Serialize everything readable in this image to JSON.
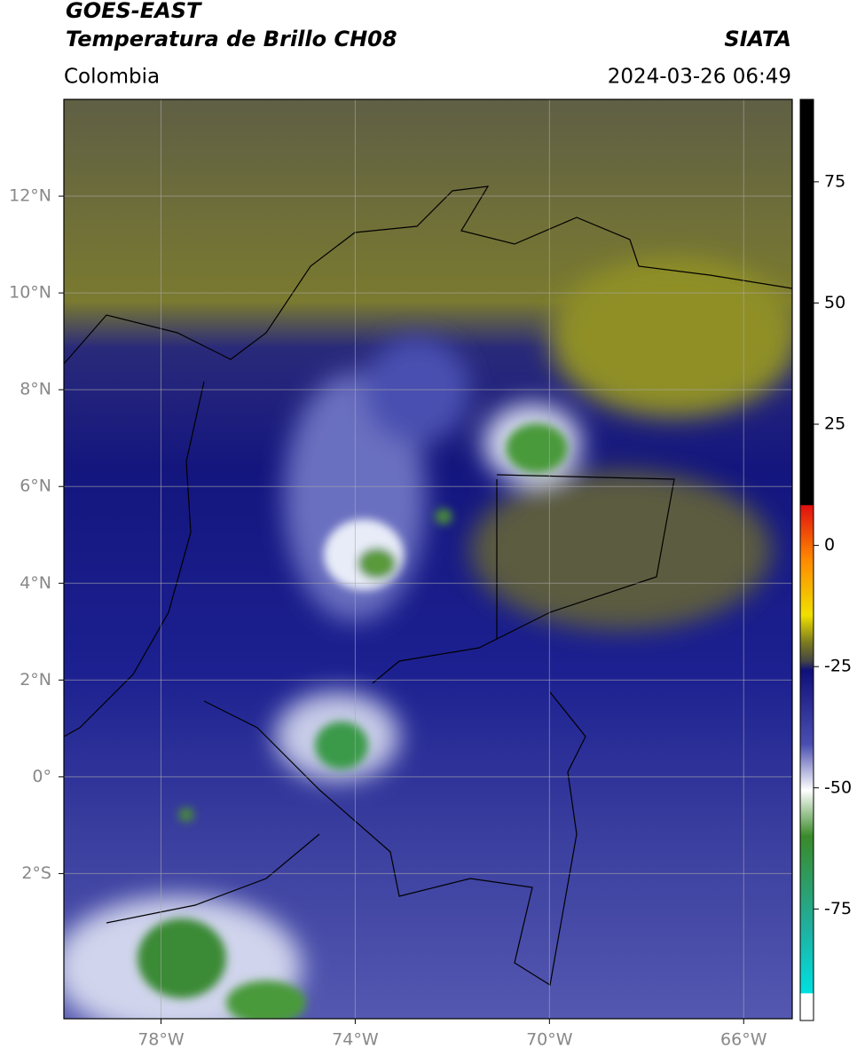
{
  "header": {
    "title": "GOES-EAST",
    "subtitle": "Temperatura de Brillo CH08",
    "region": "Colombia",
    "source": "SIATA",
    "datetime": "2024-03-26 06:49"
  },
  "map": {
    "xlim": [
      -80,
      -65
    ],
    "ylim": [
      -5,
      14
    ],
    "xticks": [
      {
        "value": -78,
        "label": "78°W"
      },
      {
        "value": -74,
        "label": "74°W"
      },
      {
        "value": -70,
        "label": "70°W"
      },
      {
        "value": -66,
        "label": "66°W"
      }
    ],
    "yticks": [
      {
        "value": 12,
        "label": "12°N"
      },
      {
        "value": 10,
        "label": "10°N"
      },
      {
        "value": 8,
        "label": "8°N"
      },
      {
        "value": 6,
        "label": "6°N"
      },
      {
        "value": 4,
        "label": "4°N"
      },
      {
        "value": 2,
        "label": "2°N"
      },
      {
        "value": 0,
        "label": "0°"
      },
      {
        "value": -2,
        "label": "2°S"
      }
    ],
    "grid": true
  },
  "colorbar": {
    "lim": [
      -98,
      92
    ],
    "ticks": [
      75,
      50,
      25,
      0,
      -25,
      -50,
      -75
    ]
  }
}
